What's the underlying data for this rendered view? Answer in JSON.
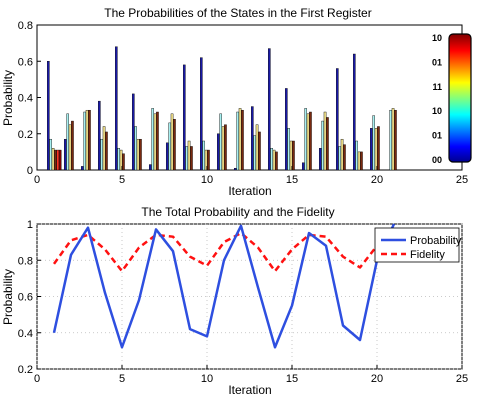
{
  "chart_data": [
    {
      "type": "bar",
      "title": "The Probabilities of the States in the First Register",
      "xlabel": "Iteration",
      "ylabel": "Probability",
      "xlim": [
        0,
        25
      ],
      "ylim": [
        0,
        0.8
      ],
      "xticks": [
        "0",
        "5",
        "10",
        "15",
        "20",
        "25"
      ],
      "yticks": [
        "0",
        "0.2",
        "0.4",
        "0.6",
        "0.8"
      ],
      "grid": false,
      "colormap": "jet",
      "colorbar_labels": [
        "10",
        "01",
        "11",
        "10",
        "01",
        "00"
      ],
      "x": [
        1,
        2,
        3,
        4,
        5,
        6,
        7,
        8,
        9,
        10,
        11,
        12,
        13,
        14,
        15,
        16,
        17,
        18,
        19,
        20,
        21
      ],
      "values": [
        [
          0.6,
          0.17,
          0.12,
          0.11,
          0.11,
          0.11
        ],
        [
          0.17,
          0.31,
          0.25,
          0.27,
          0.0,
          0.0
        ],
        [
          0.02,
          0.32,
          0.33,
          0.33,
          0.0,
          0.0
        ],
        [
          0.38,
          0.17,
          0.24,
          0.21,
          0.0,
          0.0
        ],
        [
          0.68,
          0.12,
          0.11,
          0.09,
          0.0,
          0.0
        ],
        [
          0.42,
          0.24,
          0.17,
          0.17,
          0.0,
          0.0
        ],
        [
          0.03,
          0.34,
          0.31,
          0.32,
          0.0,
          0.0
        ],
        [
          0.15,
          0.26,
          0.31,
          0.28,
          0.0,
          0.0
        ],
        [
          0.58,
          0.13,
          0.16,
          0.13,
          0.0,
          0.0
        ],
        [
          0.62,
          0.16,
          0.11,
          0.11,
          0.0,
          0.0
        ],
        [
          0.2,
          0.31,
          0.24,
          0.25,
          0.0,
          0.0
        ],
        [
          0.01,
          0.32,
          0.34,
          0.33,
          0.0,
          0.0
        ],
        [
          0.35,
          0.19,
          0.25,
          0.21,
          0.0,
          0.0
        ],
        [
          0.67,
          0.12,
          0.11,
          0.1,
          0.0,
          0.0
        ],
        [
          0.45,
          0.23,
          0.16,
          0.16,
          0.0,
          0.0
        ],
        [
          0.04,
          0.34,
          0.31,
          0.32,
          0.0,
          0.0
        ],
        [
          0.12,
          0.27,
          0.32,
          0.29,
          0.0,
          0.0
        ],
        [
          0.56,
          0.13,
          0.17,
          0.14,
          0.0,
          0.0
        ],
        [
          0.64,
          0.16,
          0.1,
          0.1,
          0.0,
          0.0
        ],
        [
          0.23,
          0.3,
          0.23,
          0.24,
          0.0,
          0.0
        ],
        [
          0.0,
          0.33,
          0.34,
          0.33,
          0.0,
          0.0
        ]
      ]
    },
    {
      "type": "line",
      "title": "The Total Probability and the Fidelity",
      "xlabel": "Iteration",
      "ylabel": "Probability",
      "xlim": [
        0,
        25
      ],
      "ylim": [
        0.2,
        1.0
      ],
      "xticks": [
        "0",
        "5",
        "10",
        "15",
        "20",
        "25"
      ],
      "yticks": [
        "0.2",
        "0.4",
        "0.6",
        "0.8",
        "1"
      ],
      "grid": true,
      "legend_position": "top-right",
      "x": [
        1,
        2,
        3,
        4,
        5,
        6,
        7,
        8,
        9,
        10,
        11,
        12,
        13,
        14,
        15,
        16,
        17,
        18,
        19,
        20,
        21
      ],
      "series": [
        {
          "name": "Probability",
          "color": "#2e4fe0",
          "style": "solid",
          "values": [
            0.4,
            0.83,
            0.98,
            0.62,
            0.32,
            0.58,
            0.97,
            0.85,
            0.42,
            0.38,
            0.8,
            0.99,
            0.65,
            0.32,
            0.55,
            0.95,
            0.88,
            0.44,
            0.36,
            0.8,
            1.0
          ]
        },
        {
          "name": "Fidelity",
          "color": "#ff1111",
          "style": "dashed",
          "values": [
            0.78,
            0.91,
            0.94,
            0.86,
            0.74,
            0.87,
            0.94,
            0.93,
            0.82,
            0.77,
            0.9,
            0.95,
            0.87,
            0.74,
            0.86,
            0.94,
            0.93,
            0.82,
            0.76,
            0.88,
            0.95
          ]
        }
      ]
    }
  ]
}
